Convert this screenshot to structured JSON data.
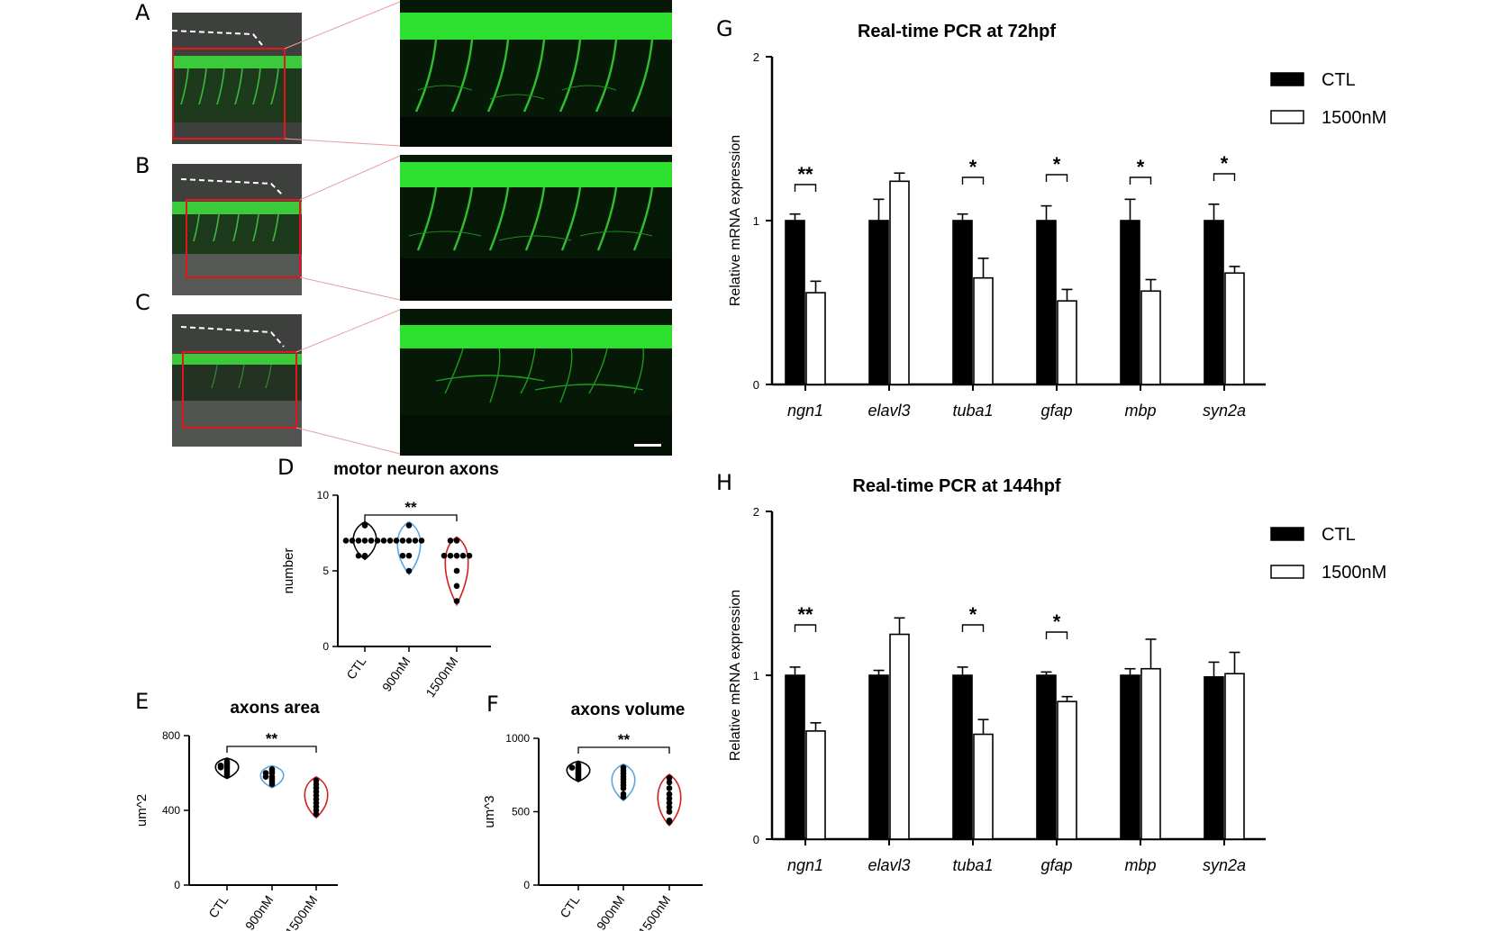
{
  "panels": {
    "a": "A",
    "b": "B",
    "c": "C",
    "d": "D",
    "e": "E",
    "f": "F",
    "g": "G",
    "h": "H"
  },
  "colors": {
    "fluorescence": "#22d422",
    "roi_box": "#e3141b",
    "ctl_violin": "#000000",
    "nm900_violin": "#5aa6e0",
    "nm1500_violin": "#d42020",
    "bar_ctl": "#000000",
    "bar_1500": "#ffffff"
  },
  "chart_data": [
    {
      "id": "D",
      "type": "scatter",
      "subtype": "violin",
      "title": "motor neuron axons",
      "xlabel": "",
      "ylabel": "number",
      "categories": [
        "CTL",
        "900nM",
        "1500nM"
      ],
      "yticks": [
        "0",
        "5",
        "10"
      ],
      "ylim": [
        0,
        10
      ],
      "points": [
        [
          7,
          7,
          7,
          7,
          7,
          7,
          7,
          8,
          6,
          6
        ],
        [
          8,
          7,
          7,
          7,
          7,
          7,
          6,
          6,
          5,
          7
        ],
        [
          7,
          7,
          6,
          6,
          6,
          6,
          5,
          4,
          3,
          6
        ]
      ],
      "significance": "**"
    },
    {
      "id": "E",
      "type": "scatter",
      "subtype": "violin",
      "title": "axons area",
      "xlabel": "",
      "ylabel": "um^2",
      "categories": [
        "CTL",
        "900nM",
        "1500nM"
      ],
      "yticks": [
        "0",
        "400",
        "800"
      ],
      "ylim": [
        0,
        800
      ],
      "points": [
        [
          660,
          650,
          640,
          630,
          630,
          620,
          610,
          600,
          590,
          640
        ],
        [
          620,
          610,
          600,
          580,
          570,
          560,
          550,
          540,
          600,
          580
        ],
        [
          560,
          540,
          520,
          500,
          480,
          460,
          440,
          420,
          400,
          380
        ]
      ],
      "significance": "**"
    },
    {
      "id": "F",
      "type": "scatter",
      "subtype": "violin",
      "title": "axons volume",
      "xlabel": "",
      "ylabel": "um^3",
      "categories": [
        "CTL",
        "900nM",
        "1500nM"
      ],
      "yticks": [
        "0",
        "500",
        "1000"
      ],
      "ylim": [
        0,
        1000
      ],
      "points": [
        [
          820,
          800,
          790,
          780,
          770,
          760,
          750,
          740,
          730,
          800
        ],
        [
          800,
          780,
          760,
          740,
          720,
          700,
          680,
          660,
          620,
          600
        ],
        [
          730,
          700,
          660,
          620,
          590,
          560,
          530,
          500,
          440,
          430
        ]
      ],
      "significance": "**"
    },
    {
      "id": "G",
      "type": "bar",
      "title": "Real-time PCR at 72hpf",
      "xlabel": "",
      "ylabel": "Relative mRNA expression",
      "categories": [
        "ngn1",
        "elavl3",
        "tuba1",
        "gfap",
        "mbp",
        "syn2a"
      ],
      "yticks": [
        "0",
        "1",
        "2"
      ],
      "ylim": [
        0,
        2
      ],
      "legend_position": "top-right",
      "series": [
        {
          "name": "CTL",
          "values": [
            1.0,
            1.0,
            1.0,
            1.0,
            1.0,
            1.0
          ],
          "errors": [
            0.04,
            0.13,
            0.04,
            0.09,
            0.13,
            0.1
          ]
        },
        {
          "name": "1500nM",
          "values": [
            0.56,
            1.24,
            0.65,
            0.51,
            0.57,
            0.68
          ],
          "errors": [
            0.07,
            0.05,
            0.12,
            0.07,
            0.07,
            0.04
          ]
        }
      ],
      "significance": [
        "**",
        "",
        "*",
        "*",
        "*",
        "*"
      ]
    },
    {
      "id": "H",
      "type": "bar",
      "title": "Real-time PCR at 144hpf",
      "xlabel": "",
      "ylabel": "Relative mRNA expression",
      "categories": [
        "ngn1",
        "elavl3",
        "tuba1",
        "gfap",
        "mbp",
        "syn2a"
      ],
      "yticks": [
        "0",
        "1",
        "2"
      ],
      "ylim": [
        0,
        2
      ],
      "legend_position": "top-right",
      "series": [
        {
          "name": "CTL",
          "values": [
            1.0,
            1.0,
            1.0,
            1.0,
            1.0,
            0.99
          ],
          "errors": [
            0.05,
            0.03,
            0.05,
            0.02,
            0.04,
            0.09
          ]
        },
        {
          "name": "1500nM",
          "values": [
            0.66,
            1.25,
            0.64,
            0.84,
            1.04,
            1.01
          ],
          "errors": [
            0.05,
            0.1,
            0.09,
            0.03,
            0.18,
            0.13
          ]
        }
      ],
      "significance": [
        "**",
        "",
        "*",
        "*",
        "",
        ""
      ]
    }
  ]
}
